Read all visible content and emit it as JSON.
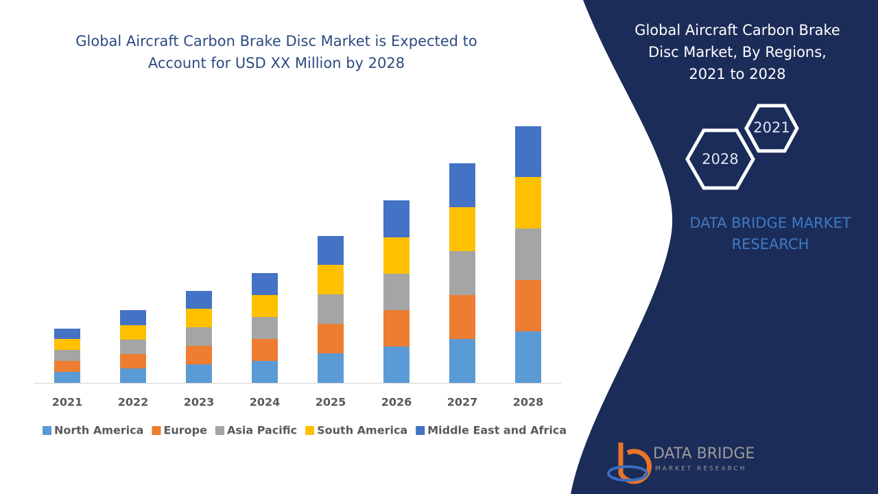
{
  "chart_data": {
    "type": "stacked-bar",
    "title": [
      "Global Aircraft Carbon Brake Disc Market is Expected to",
      "Account for USD XX Million by 2028"
    ],
    "categories": [
      "2021",
      "2022",
      "2023",
      "2024",
      "2025",
      "2026",
      "2027",
      "2028"
    ],
    "series": [
      {
        "name": "North America",
        "color": "#5b9bd5",
        "values": [
          16,
          21,
          27,
          32,
          43,
          53,
          64,
          75
        ]
      },
      {
        "name": "Europe",
        "color": "#ed7d31",
        "values": [
          16,
          21,
          27,
          32,
          43,
          53,
          64,
          75
        ]
      },
      {
        "name": "Asia Pacific",
        "color": "#a5a5a5",
        "values": [
          16,
          21,
          27,
          32,
          43,
          53,
          64,
          75
        ]
      },
      {
        "name": "South America",
        "color": "#ffc000",
        "values": [
          16,
          21,
          27,
          32,
          43,
          53,
          64,
          75
        ]
      },
      {
        "name": "Middle East and Africa",
        "color": "#4472c4",
        "values": [
          15,
          22,
          26,
          32,
          42,
          54,
          64,
          74
        ]
      }
    ],
    "ylim": [
      0,
      400
    ]
  },
  "panel": {
    "title": [
      "Global Aircraft Carbon Brake",
      "Disc Market, By Regions,",
      "2021 to 2028"
    ],
    "hexagons": [
      "2021",
      "2028"
    ],
    "brand": [
      "DATA BRIDGE MARKET",
      "RESEARCH"
    ]
  },
  "logo": {
    "name": "DATA BRIDGE",
    "tagline": "MARKET RESEARCH"
  }
}
